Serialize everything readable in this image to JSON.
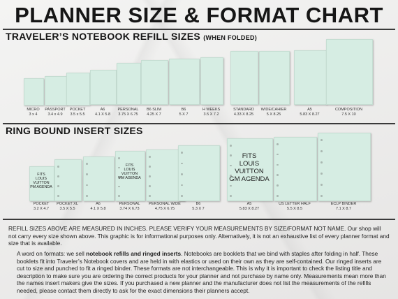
{
  "title": "PLANNER SIZE & FORMAT CHART",
  "tn": {
    "heading": "TRAVELER’S NOTEBOOK REFILL SIZES",
    "note": "(WHEN FOLDED)",
    "items": [
      {
        "name": "MICRO",
        "size": "3 x 4"
      },
      {
        "name": "PASSPORT",
        "size": "3.4 x 4.9"
      },
      {
        "name": "POCKET",
        "size": "3.5 x 5.5"
      },
      {
        "name": "A6",
        "size": "4.1 X 5.8"
      },
      {
        "name": "PERSONAL",
        "size": "3.75 X 6.75"
      },
      {
        "name": "B6 SLIM",
        "size": "4.25 X 7"
      },
      {
        "name": "B6",
        "size": "5 X 7"
      },
      {
        "name": "H WEEKS",
        "size": "3.5 X 7.2"
      },
      {
        "name": "STANDARD",
        "size": "4.33 X 8.25"
      },
      {
        "name": "WIDE/CAHIER",
        "size": "5 X 8.25"
      },
      {
        "name": "A5",
        "size": "5.83 X 8.27"
      },
      {
        "name": "COMPOSITION",
        "size": "7.5 X 10"
      }
    ]
  },
  "ring": {
    "heading": "RING BOUND INSERT SIZES",
    "items": [
      {
        "name": "POCKET",
        "size": "3.2 X 4.7"
      },
      {
        "name": "POCKET XL",
        "size": "3.5 X 5.5"
      },
      {
        "name": "A6",
        "size": "4.1 X 5.8"
      },
      {
        "name": "PERSONAL",
        "size": "3.74 X 6.73"
      },
      {
        "name": "PERSONAL WIDE",
        "size": "4.75 X 6.75"
      },
      {
        "name": "B6",
        "size": "5.3 X 7"
      },
      {
        "name": "A5",
        "size": "5.83 X 8.27"
      },
      {
        "name": "US LETTER HALF",
        "size": "5.5 X 8.5"
      },
      {
        "name": "ECLP BINDER",
        "size": "7.1 X 8.7"
      }
    ],
    "lv_pm": [
      "FITS",
      "LOUIS",
      "VUITTON",
      "PM AGENDA"
    ],
    "lv_mm": [
      "FITS",
      "LOUIS",
      "VUITTON",
      "MM AGENDA"
    ],
    "lv_gm": [
      "FITS",
      "LOUIS",
      "VUITTON",
      "GM AGENDA"
    ]
  },
  "notes": {
    "line": "REFILL SIZES ABOVE ARE MEASURED IN INCHES. PLEASE VERIFY YOUR MEASUREMENTS BY SIZE/FORMAT NOT NAME. Our shop will not carry every size shown above. This graphic is for informational purposes only. Alternatively, it is not an exhaustive list of every planner format and size that is available.",
    "word_a": "A word on formats: we sell ",
    "word_b": "notebook refills and ringed inserts",
    "word_c": ". Notebooks are booklets that we bind with staples after folding in half. These booklets fit into Traveler’s Notebook covers and are held in with elastics or used on their own as they are self-contained. Our ringed inserts are cut to size and punched to fit a ringed binder. These formats are not interchangeable. This is why it is important to check the listing title and description to make sure you are ordering the correct products for your planner and not purchase by name only. Measurements mean more than the names insert makers give the sizes. If you purchased a new planner and the manufacturer does not list the measurements of the refills needed, please contact them directly to ask for the exact dimensions their planners accept."
  },
  "colors": {
    "card": "#d6ede3",
    "text": "#161616"
  }
}
